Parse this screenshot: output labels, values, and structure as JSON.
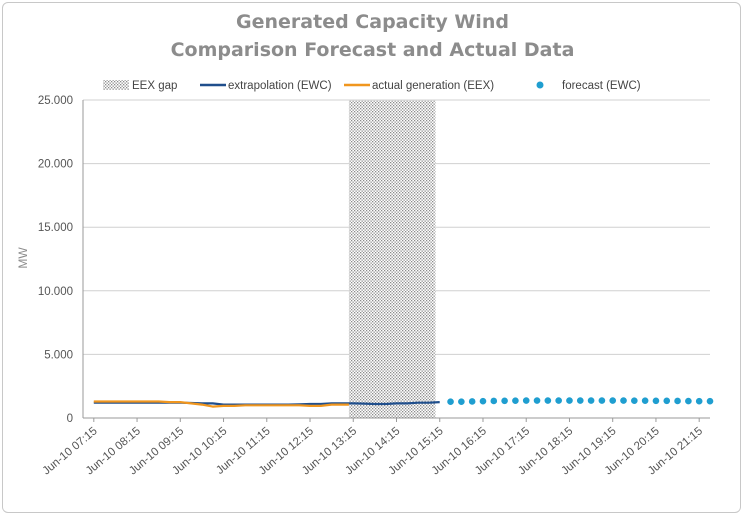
{
  "chart_data": {
    "type": "line",
    "title": "Generated Capacity Wind",
    "subtitle": "Comparison Forecast and Actual Data",
    "xlabel": "",
    "ylabel": "MW",
    "ylim": [
      0,
      25000
    ],
    "y_ticks": [
      "0",
      "5.000",
      "10.000",
      "15.000",
      "20.000",
      "25.000"
    ],
    "y_tick_values": [
      0,
      5000,
      10000,
      15000,
      20000,
      25000
    ],
    "x_ticks": [
      "Jun-10 07:15",
      "Jun-10 08:15",
      "Jun-10 09:15",
      "Jun-10 10:15",
      "Jun-10 11:15",
      "Jun-10 12:15",
      "Jun-10 13:15",
      "Jun-10 14:15",
      "Jun-10 15:15",
      "Jun-10 16:15",
      "Jun-10 17:15",
      "Jun-10 18:15",
      "Jun-10 19:15",
      "Jun-10 20:15",
      "Jun-10 21:15"
    ],
    "x_range_hours": [
      7,
      21.5
    ],
    "grid": "horizontal",
    "legend_position": "top",
    "legend": [
      "EEX gap",
      "extrapolation (EWC)",
      "actual generation (EEX)",
      "forecast (EWC)"
    ],
    "gap_range_hours": [
      13.15,
      15.15
    ],
    "series": [
      {
        "name": "extrapolation (EWC)",
        "style": "line",
        "color": "#1f4e8c",
        "points": [
          [
            7.25,
            1200
          ],
          [
            7.5,
            1200
          ],
          [
            7.75,
            1200
          ],
          [
            8.0,
            1200
          ],
          [
            8.25,
            1200
          ],
          [
            8.5,
            1200
          ],
          [
            8.75,
            1200
          ],
          [
            9.0,
            1200
          ],
          [
            9.25,
            1200
          ],
          [
            9.5,
            1180
          ],
          [
            9.75,
            1150
          ],
          [
            10.0,
            1150
          ],
          [
            10.25,
            1050
          ],
          [
            10.5,
            1050
          ],
          [
            10.75,
            1050
          ],
          [
            11.0,
            1050
          ],
          [
            11.25,
            1050
          ],
          [
            11.5,
            1050
          ],
          [
            11.75,
            1050
          ],
          [
            12.0,
            1080
          ],
          [
            12.25,
            1100
          ],
          [
            12.5,
            1100
          ],
          [
            12.75,
            1150
          ],
          [
            13.0,
            1150
          ],
          [
            13.25,
            1150
          ],
          [
            13.5,
            1130
          ],
          [
            13.75,
            1100
          ],
          [
            14.0,
            1100
          ],
          [
            14.25,
            1150
          ],
          [
            14.5,
            1150
          ],
          [
            14.75,
            1200
          ],
          [
            15.0,
            1200
          ],
          [
            15.25,
            1250
          ]
        ]
      },
      {
        "name": "actual generation (EEX)",
        "style": "line",
        "color": "#f0961e",
        "points": [
          [
            7.25,
            1300
          ],
          [
            7.5,
            1300
          ],
          [
            7.75,
            1300
          ],
          [
            8.0,
            1300
          ],
          [
            8.25,
            1300
          ],
          [
            8.5,
            1300
          ],
          [
            8.75,
            1300
          ],
          [
            9.0,
            1250
          ],
          [
            9.25,
            1250
          ],
          [
            9.5,
            1150
          ],
          [
            9.75,
            1050
          ],
          [
            10.0,
            900
          ],
          [
            10.25,
            950
          ],
          [
            10.5,
            950
          ],
          [
            10.75,
            1000
          ],
          [
            11.0,
            1000
          ],
          [
            11.25,
            1000
          ],
          [
            11.5,
            1000
          ],
          [
            11.75,
            1000
          ],
          [
            12.0,
            1000
          ],
          [
            12.25,
            950
          ],
          [
            12.5,
            950
          ],
          [
            12.75,
            1050
          ],
          [
            13.0,
            1050
          ],
          [
            13.15,
            1050
          ]
        ]
      },
      {
        "name": "forecast (EWC)",
        "style": "dots",
        "color": "#1f9ed0",
        "points": [
          [
            15.5,
            1280
          ],
          [
            15.75,
            1280
          ],
          [
            16.0,
            1300
          ],
          [
            16.25,
            1320
          ],
          [
            16.5,
            1340
          ],
          [
            16.75,
            1350
          ],
          [
            17.0,
            1360
          ],
          [
            17.25,
            1370
          ],
          [
            17.5,
            1370
          ],
          [
            17.75,
            1370
          ],
          [
            18.0,
            1370
          ],
          [
            18.25,
            1370
          ],
          [
            18.5,
            1370
          ],
          [
            18.75,
            1370
          ],
          [
            19.0,
            1370
          ],
          [
            19.25,
            1370
          ],
          [
            19.5,
            1370
          ],
          [
            19.75,
            1360
          ],
          [
            20.0,
            1360
          ],
          [
            20.25,
            1350
          ],
          [
            20.5,
            1350
          ],
          [
            20.75,
            1340
          ],
          [
            21.0,
            1330
          ],
          [
            21.25,
            1320
          ],
          [
            21.5,
            1320
          ]
        ]
      }
    ]
  }
}
